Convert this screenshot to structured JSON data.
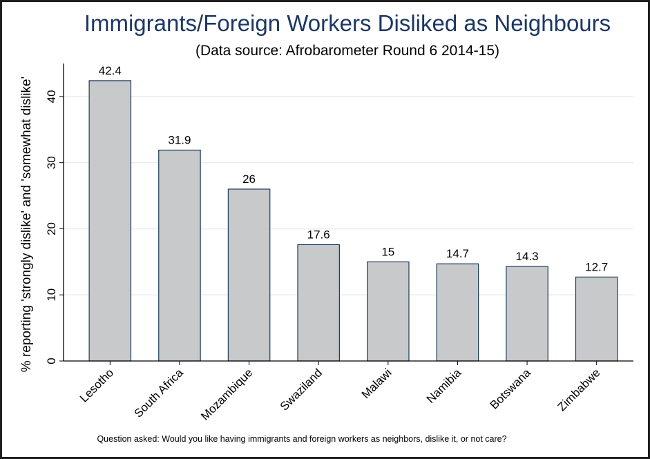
{
  "chart_data": {
    "type": "bar",
    "title": "Immigrants/Foreign Workers Disliked as Neighbours",
    "subtitle": "(Data source: Afrobarometer Round 6 2014-15)",
    "ylabel": "% reporting 'strongly dislike' and 'somewhat dislike'",
    "xlabel": "",
    "categories": [
      "Lesotho",
      "South Africa",
      "Mozambique",
      "Swaziland",
      "Malawi",
      "Namibia",
      "Botswana",
      "Zimbabwe"
    ],
    "values": [
      42.4,
      31.9,
      26,
      17.6,
      15,
      14.7,
      14.3,
      12.7
    ],
    "value_labels": [
      "42.4",
      "31.9",
      "26",
      "17.6",
      "15",
      "14.7",
      "14.3",
      "12.7"
    ],
    "ylim": [
      0,
      45
    ],
    "yticks": [
      0,
      10,
      20,
      30,
      40
    ],
    "grid": true,
    "note": "Question asked: Would you like having immigrants and foreign workers as neighbors, dislike it, or not care?",
    "colors": {
      "bar_fill": "#c8c9cb",
      "bar_stroke": "#1a3a5c",
      "title": "#1c3764",
      "grid": "#e6eef2",
      "axis": "#000000"
    }
  }
}
